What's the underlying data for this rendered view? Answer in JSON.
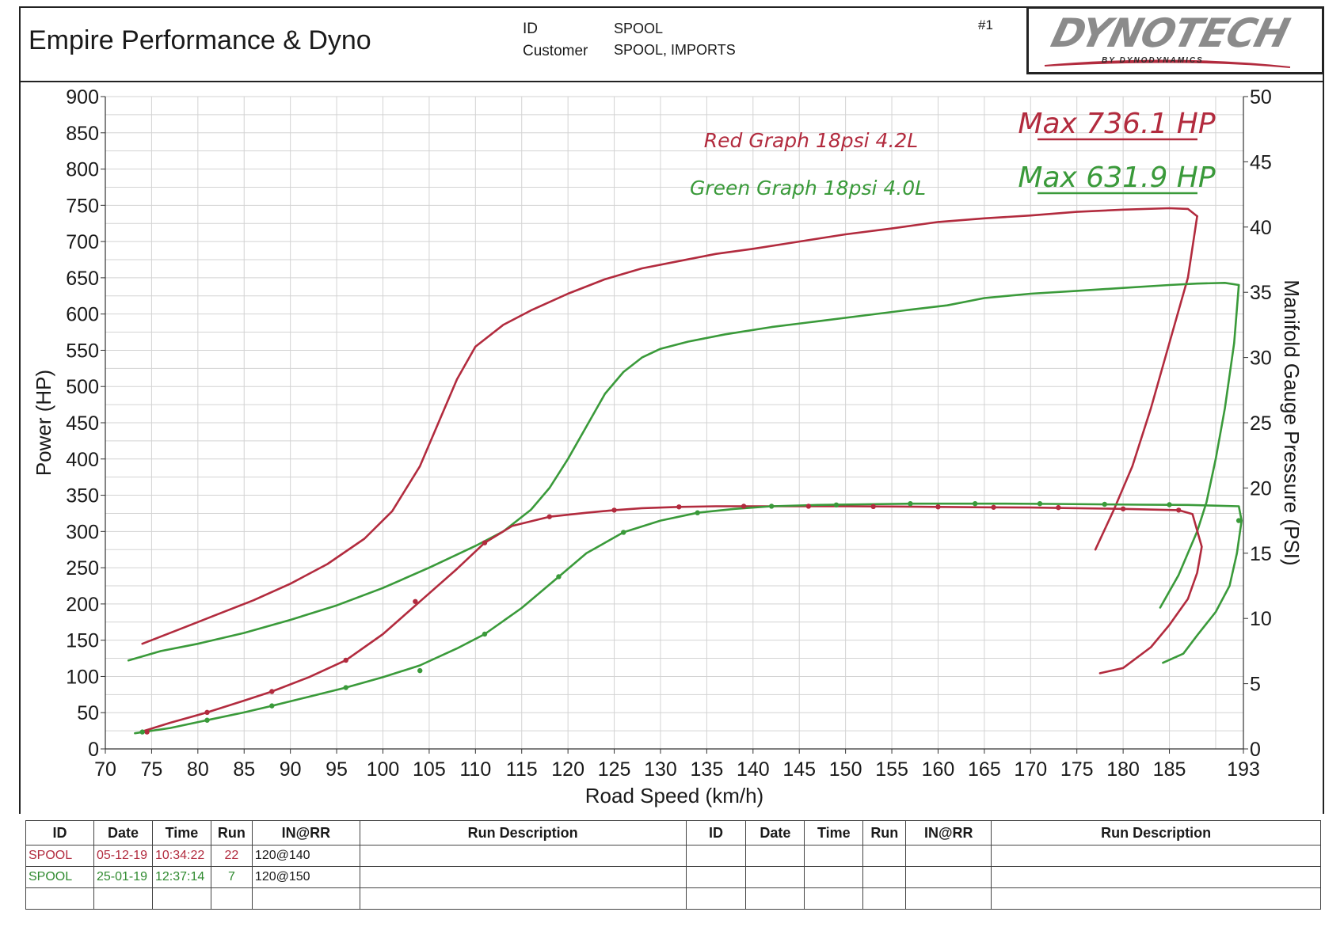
{
  "header": {
    "company": "Empire Performance & Dyno",
    "id_label": "ID",
    "id_value": "SPOOL",
    "customer_label": "Customer",
    "customer_value": "SPOOL, IMPORTS",
    "run_number": "#1"
  },
  "logo": {
    "wordmark": "DYNOTECH",
    "subtitle": "BY DYNODYNAMICS"
  },
  "colors": {
    "red_run": "#b22b3e",
    "green_run": "#3a9a3a",
    "grid": "#d3d3d3",
    "axis": "#333333"
  },
  "chart_data": {
    "type": "line",
    "xlabel": "Road Speed (km/h)",
    "ylabel": "Power (HP)",
    "y2label": "Manifold Gauge Pressure (PSI)",
    "xlim": [
      70,
      193
    ],
    "ylim": [
      0,
      900
    ],
    "y2lim": [
      0,
      50
    ],
    "x_ticks": [
      "70",
      "75",
      "80",
      "85",
      "90",
      "95",
      "100",
      "105",
      "110",
      "115",
      "120",
      "125",
      "130",
      "135",
      "140",
      "145",
      "150",
      "155",
      "160",
      "165",
      "170",
      "175",
      "180",
      "185",
      "193"
    ],
    "y_ticks": [
      "0",
      "50",
      "100",
      "150",
      "200",
      "250",
      "300",
      "350",
      "400",
      "450",
      "500",
      "550",
      "600",
      "650",
      "700",
      "750",
      "800",
      "850",
      "900"
    ],
    "y2_ticks": [
      "0",
      "5",
      "10",
      "15",
      "20",
      "25",
      "30",
      "35",
      "40",
      "45",
      "50"
    ],
    "grid": true,
    "annotations": {
      "red_label": "Red Graph 18psi 4.2L",
      "green_label": "Green Graph 18psi 4.0L",
      "red_max": "Max 736.1 HP",
      "green_max": "Max 631.9 HP"
    },
    "series": [
      {
        "color": "red",
        "axis": "left",
        "kind": "power",
        "x": [
          74,
          78,
          82,
          86,
          90,
          94,
          98,
          101,
          104,
          106,
          108,
          110,
          113,
          116,
          120,
          124,
          128,
          132,
          136,
          140,
          145,
          150,
          155,
          160,
          165,
          170,
          175,
          180,
          185,
          187,
          188
        ],
        "y": [
          145,
          165,
          185,
          205,
          228,
          255,
          290,
          328,
          390,
          450,
          510,
          555,
          585,
          605,
          628,
          648,
          663,
          673,
          683,
          690,
          700,
          710,
          718,
          727,
          732,
          736,
          741,
          744,
          746,
          745,
          735
        ]
      },
      {
        "color": "red",
        "axis": "left",
        "kind": "power-rundown",
        "x": [
          188,
          187,
          185,
          183,
          181,
          179,
          177
        ],
        "y": [
          735,
          650,
          560,
          470,
          390,
          330,
          275
        ]
      },
      {
        "color": "green",
        "axis": "left",
        "kind": "power",
        "x": [
          72.5,
          76,
          80,
          85,
          90,
          95,
          100,
          105,
          110,
          113,
          116,
          118,
          120,
          122,
          124,
          126,
          128,
          130,
          133,
          137,
          142,
          147,
          152,
          157,
          161,
          165,
          170,
          175,
          180,
          185,
          188,
          191,
          192.5
        ],
        "y": [
          122,
          135,
          145,
          160,
          178,
          198,
          222,
          250,
          280,
          300,
          330,
          360,
          400,
          445,
          490,
          520,
          540,
          552,
          562,
          572,
          582,
          590,
          598,
          606,
          612,
          622,
          628,
          632,
          636,
          640,
          642,
          643,
          640
        ]
      },
      {
        "color": "green",
        "axis": "left",
        "kind": "power-rundown",
        "x": [
          192.5,
          192,
          191,
          190,
          189,
          188,
          186,
          184
        ],
        "y": [
          640,
          560,
          470,
          400,
          340,
          300,
          240,
          195
        ]
      },
      {
        "color": "red",
        "axis": "right",
        "kind": "boost",
        "x": [
          73.8,
          77,
          81,
          85,
          88,
          92,
          96,
          100,
          104,
          108,
          111,
          114,
          118,
          122,
          125,
          128,
          132,
          136,
          140,
          145,
          150,
          155,
          160,
          165,
          170,
          175,
          180,
          186,
          187.5,
          188.5,
          188,
          187,
          185,
          183,
          180,
          177.5
        ],
        "y": [
          1.3,
          2.0,
          2.8,
          3.7,
          4.4,
          5.5,
          6.8,
          8.8,
          11.3,
          13.8,
          15.8,
          17.1,
          17.8,
          18.1,
          18.3,
          18.45,
          18.55,
          18.6,
          18.6,
          18.6,
          18.6,
          18.58,
          18.55,
          18.52,
          18.5,
          18.45,
          18.4,
          18.3,
          18.0,
          15.5,
          13.5,
          11.5,
          9.5,
          7.8,
          6.2,
          5.8
        ]
      },
      {
        "color": "green",
        "axis": "right",
        "kind": "boost",
        "x": [
          73.2,
          77,
          81,
          85,
          88,
          92,
          96,
          100,
          104,
          108,
          111,
          115,
          119,
          122,
          126,
          130,
          134,
          138,
          142,
          147,
          152,
          157,
          162,
          167,
          172,
          177,
          182,
          187,
          192.5,
          192.8,
          192.3,
          191.5,
          190,
          188,
          186.5,
          184.3
        ],
        "y": [
          1.2,
          1.6,
          2.2,
          2.8,
          3.3,
          4.0,
          4.7,
          5.5,
          6.4,
          7.7,
          8.8,
          10.8,
          13.2,
          15.0,
          16.6,
          17.5,
          18.1,
          18.4,
          18.6,
          18.7,
          18.75,
          18.8,
          18.8,
          18.8,
          18.78,
          18.75,
          18.72,
          18.7,
          18.6,
          17.5,
          15.0,
          12.5,
          10.5,
          8.7,
          7.3,
          6.6
        ]
      }
    ],
    "boost_markers": {
      "red": {
        "x": [
          74.5,
          81,
          88,
          96,
          103.5,
          111,
          118,
          125,
          132,
          139,
          146,
          153,
          160,
          166,
          173,
          180,
          186
        ],
        "y": [
          1.3,
          2.8,
          4.4,
          6.8,
          11.3,
          15.8,
          17.8,
          18.3,
          18.55,
          18.6,
          18.6,
          18.58,
          18.55,
          18.52,
          18.5,
          18.4,
          18.3
        ]
      },
      "green": {
        "x": [
          74,
          81,
          88,
          96,
          104,
          111,
          119,
          126,
          134,
          142,
          149,
          157,
          164,
          171,
          178,
          185,
          192.5
        ],
        "y": [
          1.3,
          2.2,
          3.3,
          4.7,
          6.0,
          8.8,
          13.2,
          16.6,
          18.1,
          18.6,
          18.7,
          18.8,
          18.8,
          18.8,
          18.75,
          18.72,
          17.5
        ]
      }
    }
  },
  "run_table": {
    "headers_left": [
      "ID",
      "Date",
      "Time",
      "Run",
      "IN@RR",
      "Run Description"
    ],
    "headers_right": [
      "ID",
      "Date",
      "Time",
      "Run",
      "IN@RR",
      "Run Description"
    ],
    "rows": [
      {
        "id": "SPOOL",
        "date": "05-12-19",
        "time": "10:34:22",
        "run": "22",
        "inrr": "120@140",
        "color": "red"
      },
      {
        "id": "SPOOL",
        "date": "25-01-19",
        "time": "12:37:14",
        "run": "7",
        "inrr": "120@150",
        "color": "green"
      }
    ]
  }
}
